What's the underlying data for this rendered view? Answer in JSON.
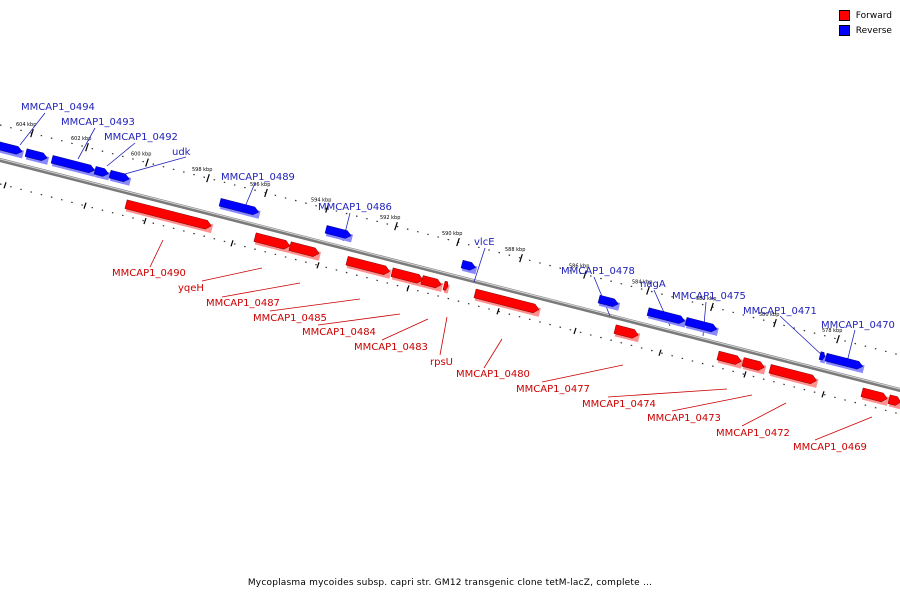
{
  "caption": "Mycoplasma mycoides subsp. capri str. GM12 transgenic clone tetM-lacZ, complete ...",
  "legend": [
    {
      "label": "Forward",
      "color": "#ff0000"
    },
    {
      "label": "Reverse",
      "color": "#0000ff"
    }
  ],
  "colors": {
    "forward": "#ff0000",
    "reverse": "#0000ff",
    "forward_text": "#cc0000",
    "reverse_text": "#2222bb"
  },
  "ticks": [
    "604 kbp",
    "602 kbp",
    "600 kbp",
    "598 kbp",
    "596 kbp",
    "594 kbp",
    "592 kbp",
    "590 kbp",
    "588 kbp",
    "586 kbp",
    "584 kbp",
    "582 kbp",
    "580 kbp",
    "578 kbp"
  ],
  "genes_reverse": [
    {
      "label": "MMCAP1_0494"
    },
    {
      "label": "MMCAP1_0493"
    },
    {
      "label": "MMCAP1_0492"
    },
    {
      "label": "udk"
    },
    {
      "label": "MMCAP1_0489"
    },
    {
      "label": "MMCAP1_0486"
    },
    {
      "label": "vlcE"
    },
    {
      "label": "MMCAP1_0478"
    },
    {
      "label": "nagA"
    },
    {
      "label": "MMCAP1_0475"
    },
    {
      "label": "MMCAP1_0471"
    },
    {
      "label": "MMCAP1_0470"
    }
  ],
  "genes_forward": [
    {
      "label": "MMCAP1_0490"
    },
    {
      "label": "yqeH"
    },
    {
      "label": "MMCAP1_0487"
    },
    {
      "label": "MMCAP1_0485"
    },
    {
      "label": "MMCAP1_0484"
    },
    {
      "label": "MMCAP1_0483"
    },
    {
      "label": "rpsU"
    },
    {
      "label": "MMCAP1_0480"
    },
    {
      "label": "MMCAP1_0477"
    },
    {
      "label": "MMCAP1_0474"
    },
    {
      "label": "MMCAP1_0473"
    },
    {
      "label": "MMCAP1_0472"
    },
    {
      "label": "MMCAP1_0469"
    }
  ]
}
